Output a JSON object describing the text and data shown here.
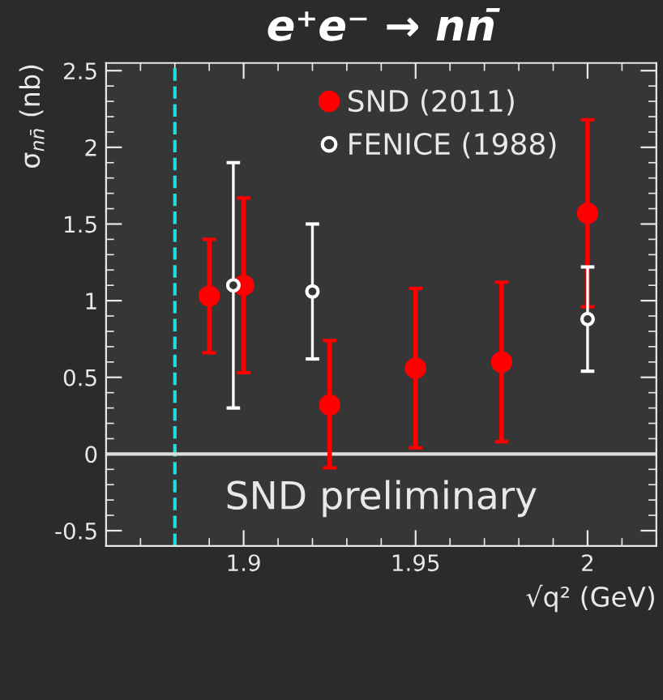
{
  "chart_data": {
    "type": "scatter",
    "title": "e⁺e⁻ → nn̄",
    "xlabel": "√q² (GeV)",
    "ylabel": "σ$_{nn̄}$ (nb)",
    "series": [
      {
        "name": "SND (2011)",
        "color": "#ff0000",
        "marker": "circle",
        "x": [
          1.89,
          1.9,
          1.925,
          1.95,
          1.975,
          2.0
        ],
        "values": [
          1.03,
          1.1,
          0.32,
          0.56,
          0.6,
          1.57
        ],
        "errors": [
          [
            0.66,
            1.4
          ],
          [
            0.53,
            1.67
          ],
          [
            -0.09,
            0.74
          ],
          [
            0.04,
            1.08
          ],
          [
            0.08,
            1.12
          ],
          [
            0.96,
            2.18
          ]
        ]
      },
      {
        "name": "FENICE (1988)",
        "color": "#ffffff",
        "marker": "circle",
        "x": [
          1.897,
          1.92,
          2.0
        ],
        "values": [
          1.1,
          1.06,
          0.88
        ],
        "errors": [
          [
            0.3,
            1.9
          ],
          [
            0.62,
            1.5
          ],
          [
            0.54,
            1.22
          ]
        ]
      }
    ],
    "xlim": [
      1.86,
      2.02
    ],
    "xticks": [
      1.9,
      1.95,
      2
    ],
    "ylim": [
      -0.6,
      2.55
    ],
    "yticks": [
      -0.5,
      0,
      0.5,
      1,
      1.5,
      2,
      2.5
    ],
    "ref_lines": [
      {
        "axis": "x",
        "value": 1.88,
        "color": "#22dddd",
        "line_style": "dashed"
      },
      {
        "axis": "y",
        "value": 0,
        "color": "#dddddd",
        "line_style": "solid"
      }
    ],
    "annotations": [
      "SND preliminary"
    ],
    "legend": "top",
    "grid": false
  }
}
